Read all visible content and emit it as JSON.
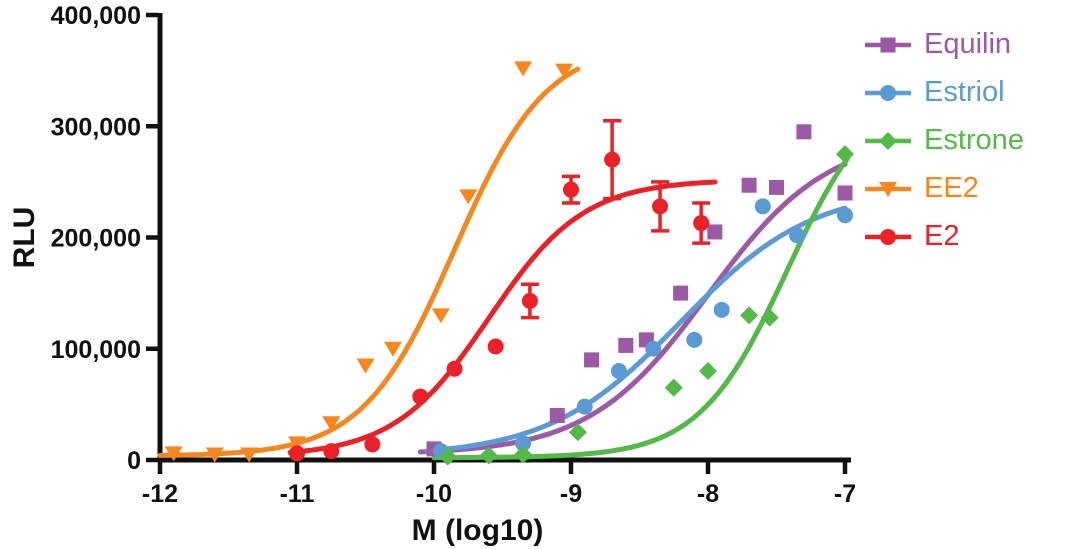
{
  "figure": {
    "xlabel": "M (log10)",
    "ylabel": "RLU"
  },
  "chart_data": {
    "type": "scatter",
    "title": "",
    "xlabel": "M (log10)",
    "ylabel": "RLU",
    "xlim": [
      -12,
      -7
    ],
    "ylim": [
      0,
      400000
    ],
    "grid": false,
    "legend_position": "right",
    "xticks": {
      "values": [
        -12,
        -11,
        -10,
        -9,
        -8,
        -7
      ],
      "labels": [
        "-12",
        "-11",
        "-10",
        "-9",
        "-8",
        "-7"
      ]
    },
    "yticks": {
      "values": [
        0,
        100000,
        200000,
        300000,
        400000
      ],
      "labels": [
        "0",
        "100,000",
        "200,000",
        "300,000",
        "400,000"
      ]
    },
    "series": [
      {
        "name": "Equilin",
        "color": "#9C59A5",
        "marker": "square",
        "fit": {
          "bottom": 5000,
          "top": 292000,
          "logec50": -8.0,
          "hill": 1.0
        },
        "fit_range": [
          -10.1,
          -7.0
        ],
        "points": [
          [
            -10.0,
            10000
          ],
          [
            -9.1,
            40000
          ],
          [
            -8.85,
            90000
          ],
          [
            -8.6,
            103000
          ],
          [
            -8.45,
            108000
          ],
          [
            -8.2,
            150000
          ],
          [
            -7.95,
            205000
          ],
          [
            -7.7,
            247000
          ],
          [
            -7.5,
            245000
          ],
          [
            -7.3,
            295000
          ],
          [
            -7.0,
            240000
          ]
        ],
        "errors": null
      },
      {
        "name": "Estriol",
        "color": "#5A9BD5",
        "marker": "circle",
        "fit": {
          "bottom": 3000,
          "top": 245000,
          "logec50": -8.2,
          "hill": 0.9
        },
        "fit_range": [
          -10.05,
          -7.0
        ],
        "points": [
          [
            -9.95,
            8000
          ],
          [
            -9.35,
            15000
          ],
          [
            -8.9,
            48000
          ],
          [
            -8.65,
            80000
          ],
          [
            -8.4,
            100000
          ],
          [
            -8.1,
            108000
          ],
          [
            -7.9,
            135000
          ],
          [
            -7.6,
            228000
          ],
          [
            -7.35,
            202000
          ],
          [
            -7.0,
            220000
          ]
        ],
        "errors": null
      },
      {
        "name": "Estrone",
        "color": "#53B948",
        "marker": "diamond",
        "fit": {
          "bottom": 2000,
          "top": 340000,
          "logec50": -7.42,
          "hill": 1.35
        },
        "fit_range": [
          -10.0,
          -6.98
        ],
        "points": [
          [
            -9.9,
            3000
          ],
          [
            -9.6,
            4000
          ],
          [
            -9.35,
            5000
          ],
          [
            -8.95,
            25000
          ],
          [
            -8.25,
            65000
          ],
          [
            -8.0,
            80000
          ],
          [
            -7.7,
            130000
          ],
          [
            -7.55,
            128000
          ],
          [
            -7.0,
            275000
          ]
        ],
        "errors": null
      },
      {
        "name": "EE2",
        "color": "#F6871F",
        "marker": "triangle-down",
        "fit": {
          "bottom": 3500,
          "top": 375000,
          "logec50": -9.85,
          "hill": 1.3
        },
        "fit_range": [
          -12.0,
          -8.95
        ],
        "points": [
          [
            -11.9,
            6000
          ],
          [
            -11.6,
            5000
          ],
          [
            -11.35,
            5000
          ],
          [
            -11.0,
            15000
          ],
          [
            -10.75,
            33000
          ],
          [
            -10.5,
            85000
          ],
          [
            -10.3,
            100000
          ],
          [
            -9.95,
            130000
          ],
          [
            -9.75,
            237000
          ],
          [
            -9.35,
            352000
          ],
          [
            -9.05,
            350000
          ]
        ],
        "errors": null
      },
      {
        "name": "E2",
        "color": "#EB2127",
        "marker": "circle",
        "fit": {
          "bottom": 3000,
          "top": 252000,
          "logec50": -9.6,
          "hill": 1.25
        },
        "fit_range": [
          -11.05,
          -7.95
        ],
        "points": [
          [
            -11.0,
            6000
          ],
          [
            -10.75,
            8000
          ],
          [
            -10.45,
            14000
          ],
          [
            -10.1,
            57000
          ],
          [
            -9.85,
            82000
          ],
          [
            -9.55,
            102000
          ],
          [
            -9.3,
            143000
          ],
          [
            -9.0,
            243000
          ],
          [
            -8.7,
            270000
          ],
          [
            -8.35,
            228000
          ],
          [
            -8.05,
            213000
          ]
        ],
        "errors": [
          null,
          null,
          null,
          null,
          null,
          null,
          15000,
          12000,
          35000,
          22000,
          18000
        ]
      }
    ]
  }
}
